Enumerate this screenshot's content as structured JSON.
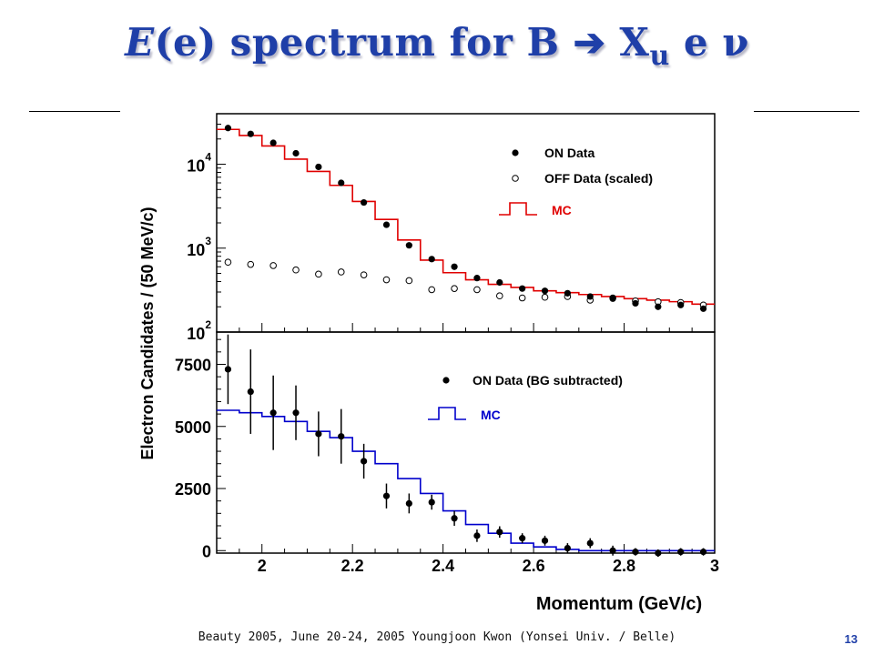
{
  "slide": {
    "title_italic": "E",
    "title_main": "(e) spectrum for B ",
    "title_arrow": "➔",
    "title_x": " X",
    "title_sub": "u",
    "title_end": " e ν",
    "footer": "Beauty 2005, June 20-24, 2005    Youngjoon Kwon (Yonsei Univ. / Belle)",
    "page_number": "13"
  },
  "colors": {
    "title": "#1f3fa8",
    "mc_top": "#e00000",
    "mc_bottom": "#0000cc"
  },
  "chart_data": [
    {
      "type": "scatter",
      "panel": "top",
      "yscale": "log",
      "ylim": [
        100,
        40000
      ],
      "xlim": [
        1.9,
        3.0
      ],
      "ylabel": "Electron Candidates / (50 MeV/c)",
      "yticks": [
        {
          "value": 100,
          "base": "10",
          "exp": "2"
        },
        {
          "value": 1000,
          "base": "10",
          "exp": "3"
        },
        {
          "value": 10000,
          "base": "10",
          "exp": "4"
        }
      ],
      "legend": [
        "ON Data",
        "OFF Data (scaled)",
        "MC"
      ],
      "legend_position": "top-right",
      "x": [
        1.925,
        1.975,
        2.025,
        2.075,
        2.125,
        2.175,
        2.225,
        2.275,
        2.325,
        2.375,
        2.425,
        2.475,
        2.525,
        2.575,
        2.625,
        2.675,
        2.725,
        2.775,
        2.825,
        2.875,
        2.925,
        2.975
      ],
      "series": [
        {
          "name": "ON Data",
          "values": [
            27000,
            23000,
            18000,
            13500,
            9300,
            6000,
            3500,
            1900,
            1080,
            740,
            600,
            440,
            390,
            330,
            310,
            290,
            265,
            250,
            220,
            200,
            210,
            190
          ]
        },
        {
          "name": "OFF Data (scaled)",
          "values": [
            680,
            640,
            620,
            550,
            490,
            520,
            480,
            420,
            410,
            320,
            330,
            320,
            270,
            255,
            260,
            265,
            240,
            255,
            235,
            230,
            225,
            210
          ]
        },
        {
          "name": "MC",
          "values": [
            26000,
            22000,
            16500,
            11500,
            8200,
            5600,
            3600,
            2200,
            1250,
            720,
            510,
            420,
            370,
            340,
            310,
            295,
            280,
            265,
            250,
            240,
            230,
            215
          ]
        }
      ]
    },
    {
      "type": "scatter",
      "panel": "bottom",
      "ylim": [
        -100,
        8800
      ],
      "xlim": [
        1.9,
        3.0
      ],
      "xlabel": "Momentum (GeV/c)",
      "yticks": [
        0,
        2500,
        5000,
        7500
      ],
      "xticks": [
        2,
        2.2,
        2.4,
        2.6,
        2.8,
        3
      ],
      "legend": [
        "ON Data (BG subtracted)",
        "MC"
      ],
      "legend_position": "top-right",
      "x": [
        1.925,
        1.975,
        2.025,
        2.075,
        2.125,
        2.175,
        2.225,
        2.275,
        2.325,
        2.375,
        2.425,
        2.475,
        2.525,
        2.575,
        2.625,
        2.675,
        2.725,
        2.775,
        2.825,
        2.875,
        2.925,
        2.975
      ],
      "series": [
        {
          "name": "ON Data (BG subtracted)",
          "values": [
            7300,
            6400,
            5550,
            5550,
            4700,
            4600,
            3600,
            2200,
            1900,
            1950,
            1300,
            600,
            750,
            500,
            400,
            100,
            300,
            0,
            -50,
            -100,
            -50,
            -50
          ],
          "errors": [
            1400,
            1700,
            1500,
            1100,
            900,
            1100,
            700,
            500,
            400,
            300,
            300,
            250,
            230,
            200,
            200,
            200,
            200,
            200,
            150,
            150,
            150,
            150
          ]
        },
        {
          "name": "MC",
          "values": [
            5650,
            5550,
            5400,
            5200,
            4800,
            4550,
            4000,
            3500,
            2900,
            2300,
            1600,
            1050,
            700,
            300,
            150,
            50,
            0,
            0,
            0,
            0,
            0,
            0
          ]
        }
      ]
    }
  ]
}
